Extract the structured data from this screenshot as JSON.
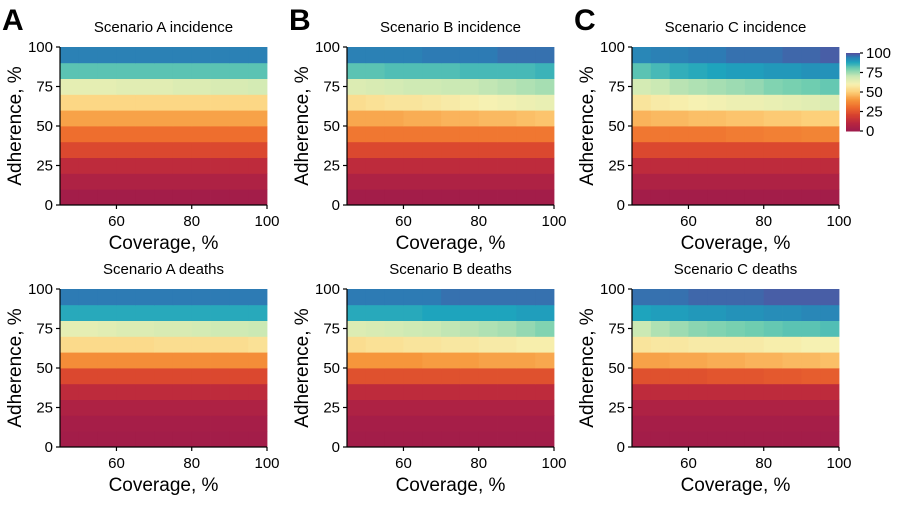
{
  "colormap": {
    "name": "Spectral_r",
    "stops": [
      {
        "v": 0,
        "color": "#9e1b4c"
      },
      {
        "v": 10,
        "color": "#b8263f"
      },
      {
        "v": 20,
        "color": "#d6402f"
      },
      {
        "v": 30,
        "color": "#ed6a2d"
      },
      {
        "v": 40,
        "color": "#f6963b"
      },
      {
        "v": 50,
        "color": "#fdd07a"
      },
      {
        "v": 60,
        "color": "#f6f1b2"
      },
      {
        "v": 70,
        "color": "#cbe9b4"
      },
      {
        "v": 80,
        "color": "#6fcdb0"
      },
      {
        "v": 88,
        "color": "#1ea4bd"
      },
      {
        "v": 95,
        "color": "#2d7bb4"
      },
      {
        "v": 100,
        "color": "#5a4a9c"
      }
    ]
  },
  "colorbar": {
    "ticks": [
      100,
      75,
      50,
      25,
      0
    ],
    "range": [
      0,
      100
    ]
  },
  "chart_data": [
    {
      "type": "heatmap",
      "panel": "A",
      "title": "Scenario A incidence",
      "xlabel": "Coverage, %",
      "ylabel": "Adherence, %",
      "xlim": [
        45,
        100
      ],
      "ylim": [
        0,
        100
      ],
      "xticks": [
        60,
        80,
        100
      ],
      "yticks": [
        0,
        25,
        50,
        75,
        100
      ],
      "x": [
        47.5,
        52.5,
        57.5,
        62.5,
        67.5,
        72.5,
        77.5,
        82.5,
        87.5,
        92.5,
        97.5
      ],
      "y": [
        5,
        15,
        25,
        35,
        45,
        55,
        65,
        75,
        85,
        95
      ],
      "values": [
        [
          2,
          2,
          2,
          2,
          2,
          2,
          2,
          2,
          2,
          2,
          2
        ],
        [
          6,
          6,
          6,
          6,
          6,
          6,
          6,
          6,
          6,
          6,
          6
        ],
        [
          12,
          12,
          12,
          12,
          12,
          12,
          12,
          12,
          12,
          12,
          12
        ],
        [
          22,
          22,
          22,
          22,
          22,
          22,
          22,
          22,
          22,
          22,
          22
        ],
        [
          31,
          31,
          31,
          31,
          31,
          31,
          31,
          31,
          31,
          31,
          31
        ],
        [
          42,
          42,
          42,
          42,
          42,
          42,
          42,
          42,
          42,
          42,
          42
        ],
        [
          52,
          52,
          52,
          52,
          52,
          52,
          52,
          52,
          52,
          52,
          52
        ],
        [
          64,
          64,
          64,
          65,
          65,
          65,
          66,
          66,
          67,
          67,
          68
        ],
        [
          82,
          82,
          82,
          82,
          82,
          82,
          82,
          82,
          82,
          82,
          82
        ],
        [
          94,
          94,
          94,
          94,
          94,
          94,
          94,
          94,
          94,
          94,
          94
        ]
      ]
    },
    {
      "type": "heatmap",
      "panel": "B",
      "title": "Scenario B incidence",
      "xlabel": "Coverage, %",
      "ylabel": "Adherence, %",
      "xlim": [
        45,
        100
      ],
      "ylim": [
        0,
        100
      ],
      "xticks": [
        60,
        80,
        100
      ],
      "yticks": [
        0,
        25,
        50,
        75,
        100
      ],
      "x": [
        47.5,
        52.5,
        57.5,
        62.5,
        67.5,
        72.5,
        77.5,
        82.5,
        87.5,
        92.5,
        97.5
      ],
      "y": [
        5,
        15,
        25,
        35,
        45,
        55,
        65,
        75,
        85,
        95
      ],
      "values": [
        [
          2,
          2,
          2,
          2,
          2,
          2,
          2,
          2,
          2,
          2,
          2
        ],
        [
          6,
          6,
          6,
          6,
          6,
          6,
          6,
          6,
          6,
          6,
          6
        ],
        [
          12,
          12,
          12,
          12,
          12,
          12,
          12,
          12,
          12,
          12,
          12
        ],
        [
          22,
          22,
          22,
          22,
          22,
          22,
          22,
          22,
          22,
          22,
          22
        ],
        [
          33,
          33,
          33,
          33,
          33,
          33,
          33,
          33,
          33,
          33,
          33
        ],
        [
          43,
          43,
          43,
          44,
          44,
          45,
          45,
          46,
          46,
          47,
          48
        ],
        [
          54,
          55,
          56,
          56,
          57,
          58,
          59,
          60,
          61,
          62,
          63
        ],
        [
          66,
          67,
          68,
          69,
          69,
          70,
          70,
          71,
          72,
          73,
          74
        ],
        [
          82,
          82,
          83,
          83,
          83,
          83,
          84,
          84,
          84,
          84,
          85
        ],
        [
          94,
          94,
          94,
          94,
          95,
          95,
          95,
          95,
          96,
          96,
          96
        ]
      ]
    },
    {
      "type": "heatmap",
      "panel": "C",
      "title": "Scenario C incidence",
      "xlabel": "Coverage, %",
      "ylabel": "Adherence, %",
      "xlim": [
        45,
        100
      ],
      "ylim": [
        0,
        100
      ],
      "xticks": [
        60,
        80,
        100
      ],
      "yticks": [
        0,
        25,
        50,
        75,
        100
      ],
      "x": [
        47.5,
        52.5,
        57.5,
        62.5,
        67.5,
        72.5,
        77.5,
        82.5,
        87.5,
        92.5,
        97.5
      ],
      "y": [
        5,
        15,
        25,
        35,
        45,
        55,
        65,
        75,
        85,
        95
      ],
      "values": [
        [
          2,
          2,
          2,
          2,
          2,
          2,
          2,
          2,
          2,
          2,
          2
        ],
        [
          6,
          6,
          6,
          6,
          6,
          6,
          6,
          6,
          6,
          6,
          6
        ],
        [
          12,
          12,
          12,
          12,
          12,
          12,
          12,
          12,
          12,
          12,
          12
        ],
        [
          22,
          22,
          22,
          22,
          22,
          22,
          22,
          22,
          22,
          22,
          22
        ],
        [
          33,
          33,
          33,
          33,
          33,
          34,
          34,
          35,
          35,
          36,
          36
        ],
        [
          45,
          46,
          46,
          47,
          47,
          48,
          48,
          49,
          49,
          50,
          50
        ],
        [
          56,
          58,
          59,
          60,
          61,
          62,
          62,
          63,
          64,
          65,
          66
        ],
        [
          68,
          70,
          72,
          73,
          74,
          75,
          76,
          78,
          79,
          80,
          81
        ],
        [
          82,
          84,
          86,
          87,
          88,
          89,
          89,
          90,
          90,
          91,
          91
        ],
        [
          93,
          94,
          94,
          95,
          95,
          96,
          96,
          96,
          97,
          97,
          98
        ]
      ]
    },
    {
      "type": "heatmap",
      "panel": "A",
      "title": "Scenario A deaths",
      "xlabel": "Coverage, %",
      "ylabel": "Adherence, %",
      "xlim": [
        45,
        100
      ],
      "ylim": [
        0,
        100
      ],
      "xticks": [
        60,
        80,
        100
      ],
      "yticks": [
        0,
        25,
        50,
        75,
        100
      ],
      "x": [
        47.5,
        52.5,
        57.5,
        62.5,
        67.5,
        72.5,
        77.5,
        82.5,
        87.5,
        92.5,
        97.5
      ],
      "y": [
        5,
        15,
        25,
        35,
        45,
        55,
        65,
        75,
        85,
        95
      ],
      "values": [
        [
          2,
          2,
          2,
          2,
          2,
          2,
          2,
          2,
          2,
          2,
          2
        ],
        [
          3,
          3,
          3,
          3,
          3,
          3,
          3,
          3,
          3,
          3,
          3
        ],
        [
          6,
          6,
          6,
          6,
          6,
          6,
          6,
          6,
          6,
          6,
          6
        ],
        [
          12,
          12,
          12,
          12,
          12,
          12,
          12,
          12,
          12,
          12,
          12
        ],
        [
          22,
          22,
          22,
          22,
          22,
          22,
          22,
          22,
          22,
          22,
          22
        ],
        [
          38,
          38,
          38,
          38,
          38,
          38,
          38,
          38,
          38,
          38,
          38
        ],
        [
          53,
          53,
          53,
          53,
          53,
          54,
          54,
          54,
          54,
          54,
          55
        ],
        [
          64,
          64,
          65,
          66,
          66,
          67,
          67,
          68,
          69,
          69,
          70
        ],
        [
          87,
          87,
          87,
          87,
          87,
          87,
          87,
          87,
          87,
          87,
          87
        ],
        [
          95,
          95,
          95,
          95,
          95,
          95,
          95,
          95,
          95,
          95,
          95
        ]
      ]
    },
    {
      "type": "heatmap",
      "panel": "B",
      "title": "Scenario B deaths",
      "xlabel": "Coverage, %",
      "ylabel": "Adherence, %",
      "xlim": [
        45,
        100
      ],
      "ylim": [
        0,
        100
      ],
      "xticks": [
        60,
        80,
        100
      ],
      "yticks": [
        0,
        25,
        50,
        75,
        100
      ],
      "x": [
        47.5,
        52.5,
        57.5,
        62.5,
        67.5,
        72.5,
        77.5,
        82.5,
        87.5,
        92.5,
        97.5
      ],
      "y": [
        5,
        15,
        25,
        35,
        45,
        55,
        65,
        75,
        85,
        95
      ],
      "values": [
        [
          2,
          2,
          2,
          2,
          2,
          2,
          2,
          2,
          2,
          2,
          2
        ],
        [
          3,
          3,
          3,
          3,
          3,
          3,
          3,
          3,
          3,
          3,
          3
        ],
        [
          6,
          6,
          6,
          6,
          6,
          6,
          6,
          6,
          6,
          6,
          6
        ],
        [
          12,
          12,
          12,
          12,
          12,
          12,
          12,
          12,
          12,
          12,
          12
        ],
        [
          24,
          24,
          24,
          24,
          24,
          24,
          24,
          24,
          24,
          24,
          24
        ],
        [
          40,
          40,
          40,
          40,
          41,
          41,
          41,
          42,
          42,
          42,
          43
        ],
        [
          54,
          55,
          55,
          56,
          56,
          57,
          57,
          58,
          58,
          59,
          59
        ],
        [
          66,
          67,
          68,
          69,
          70,
          71,
          72,
          73,
          74,
          76,
          78
        ],
        [
          87,
          87,
          87,
          87,
          88,
          88,
          88,
          88,
          88,
          89,
          89
        ],
        [
          95,
          95,
          95,
          95,
          95,
          96,
          96,
          96,
          96,
          96,
          96
        ]
      ]
    },
    {
      "type": "heatmap",
      "panel": "C",
      "title": "Scenario C deaths",
      "xlabel": "Coverage, %",
      "ylabel": "Adherence, %",
      "xlim": [
        45,
        100
      ],
      "ylim": [
        0,
        100
      ],
      "xticks": [
        60,
        80,
        100
      ],
      "yticks": [
        0,
        25,
        50,
        75,
        100
      ],
      "x": [
        47.5,
        52.5,
        57.5,
        62.5,
        67.5,
        72.5,
        77.5,
        82.5,
        87.5,
        92.5,
        97.5
      ],
      "y": [
        5,
        15,
        25,
        35,
        45,
        55,
        65,
        75,
        85,
        95
      ],
      "values": [
        [
          2,
          2,
          2,
          2,
          2,
          2,
          2,
          2,
          2,
          2,
          2
        ],
        [
          3,
          3,
          3,
          3,
          3,
          3,
          3,
          3,
          3,
          3,
          3
        ],
        [
          6,
          6,
          6,
          6,
          6,
          6,
          6,
          6,
          6,
          6,
          6
        ],
        [
          12,
          12,
          12,
          12,
          12,
          12,
          12,
          12,
          12,
          12,
          12
        ],
        [
          24,
          24,
          24,
          24,
          25,
          25,
          25,
          26,
          26,
          27,
          27
        ],
        [
          42,
          42,
          43,
          43,
          44,
          44,
          45,
          45,
          46,
          46,
          47
        ],
        [
          56,
          57,
          57,
          58,
          58,
          58,
          58,
          59,
          59,
          60,
          60
        ],
        [
          70,
          73,
          75,
          77,
          78,
          79,
          80,
          81,
          82,
          82,
          83
        ],
        [
          88,
          89,
          89,
          90,
          90,
          91,
          91,
          92,
          92,
          93,
          93
        ],
        [
          96,
          96,
          96,
          97,
          97,
          97,
          97,
          98,
          98,
          98,
          98
        ]
      ]
    }
  ]
}
